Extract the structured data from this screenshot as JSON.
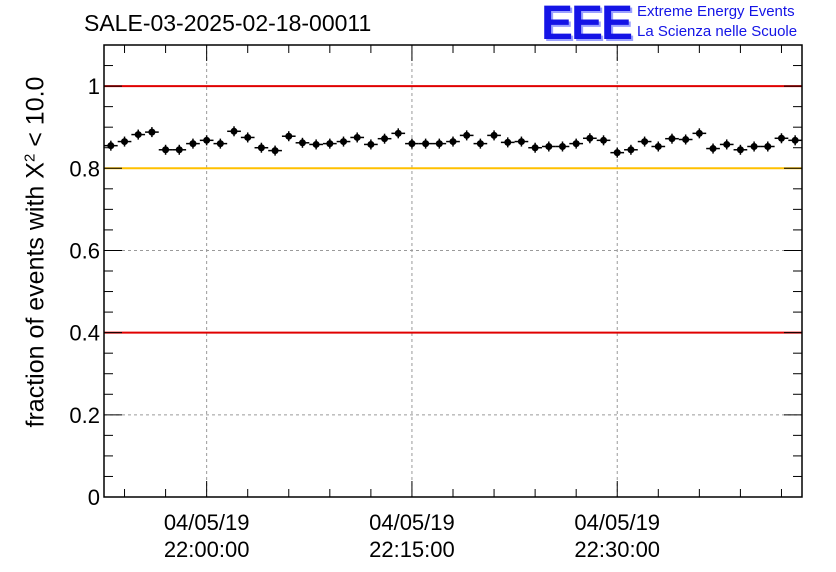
{
  "header": {
    "run_title": "SALE-03-2025-02-18-00011"
  },
  "logo": {
    "mark": "EEE",
    "line1": "Extreme Energy Events",
    "line2": "La Scienza nelle Scuole"
  },
  "colors": {
    "red_line": "#e00000",
    "yellow_line": "#ffc000",
    "marker": "#000000",
    "grid": "#9a9a9a"
  },
  "chart_data": {
    "type": "scatter",
    "title": "SALE-03-2025-02-18-00011",
    "ylabel_prefix": "fraction of events with ",
    "ylabel_symbol": "X",
    "ylabel_power": "2",
    "ylabel_suffix": " < 10.0",
    "xlabel": "",
    "ylim": [
      0,
      1.1
    ],
    "y_ticks": [
      0,
      0.2,
      0.4,
      0.6,
      0.8,
      1
    ],
    "y_tick_labels": [
      "0",
      "0.2",
      "0.4",
      "0.6",
      "0.8",
      "1"
    ],
    "x_ticks": [
      {
        "minute": 15,
        "date": "04/05/19",
        "time": "22:00:00"
      },
      {
        "minute": 30,
        "date": "04/05/19",
        "time": "22:15:00"
      },
      {
        "minute": 45,
        "date": "04/05/19",
        "time": "22:30:00"
      }
    ],
    "x_range_minutes": [
      7.5,
      58.5
    ],
    "reference_lines": [
      {
        "y": 1.0,
        "color": "red"
      },
      {
        "y": 0.8,
        "color": "yellow"
      },
      {
        "y": 0.4,
        "color": "red"
      }
    ],
    "series": [
      {
        "name": "fraction",
        "x_minutes": [
          8,
          9,
          10,
          11,
          12,
          13,
          14,
          15,
          16,
          17,
          18,
          19,
          20,
          21,
          22,
          23,
          24,
          25,
          26,
          27,
          28,
          29,
          30,
          31,
          32,
          33,
          34,
          35,
          36,
          37,
          38,
          39,
          40,
          41,
          42,
          43,
          44,
          45,
          46,
          47,
          48,
          49,
          50,
          51,
          52,
          53,
          54,
          55,
          56,
          57,
          58
        ],
        "values": [
          0.855,
          0.865,
          0.882,
          0.888,
          0.845,
          0.845,
          0.86,
          0.868,
          0.86,
          0.89,
          0.875,
          0.85,
          0.843,
          0.878,
          0.862,
          0.858,
          0.86,
          0.865,
          0.875,
          0.858,
          0.872,
          0.885,
          0.86,
          0.86,
          0.86,
          0.865,
          0.88,
          0.86,
          0.88,
          0.863,
          0.865,
          0.85,
          0.853,
          0.853,
          0.86,
          0.873,
          0.868,
          0.838,
          0.845,
          0.865,
          0.853,
          0.872,
          0.87,
          0.885,
          0.848,
          0.858,
          0.845,
          0.853,
          0.853,
          0.873,
          0.868
        ]
      }
    ]
  }
}
